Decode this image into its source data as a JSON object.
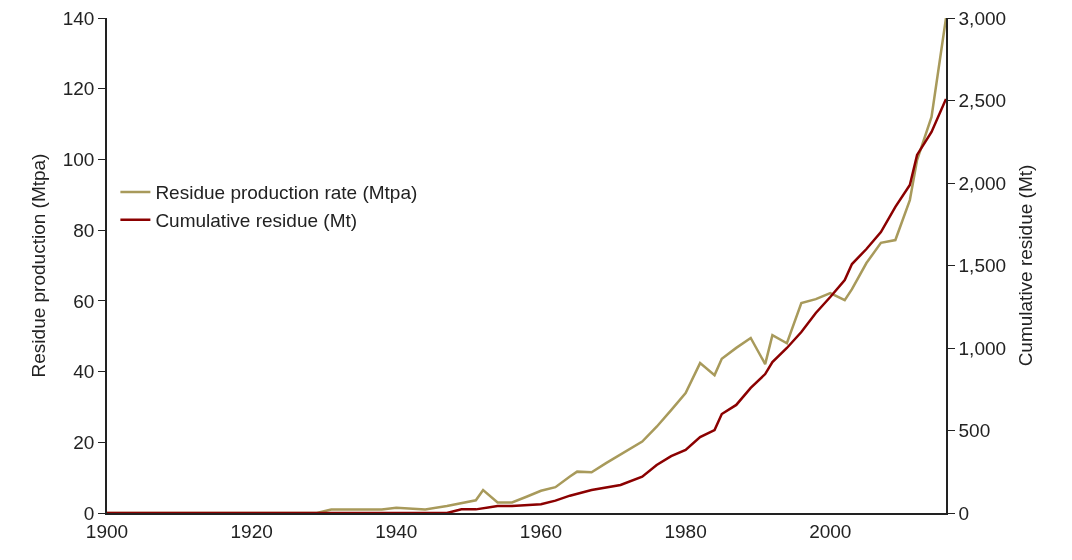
{
  "chart_data": {
    "type": "line",
    "xlabel": null,
    "ylabel": "Residue production (Mtpa)",
    "y2label": "Cumulative residue (Mt)",
    "xlim": [
      1900,
      2016
    ],
    "xticks": [
      1900,
      1920,
      1940,
      1960,
      1980,
      2000
    ],
    "ylim": [
      0,
      140
    ],
    "yticks": [
      0,
      20,
      40,
      60,
      80,
      100,
      120,
      140
    ],
    "y2lim": [
      0,
      3000
    ],
    "y2ticks": [
      {
        "value": 0,
        "label": "0"
      },
      {
        "value": 500,
        "label": "500"
      },
      {
        "value": 1000,
        "label": "1,000"
      },
      {
        "value": 1500,
        "label": "1,500"
      },
      {
        "value": 2000,
        "label": "2,000"
      },
      {
        "value": 2500,
        "label": "2,500"
      },
      {
        "value": 3000,
        "label": "3,000"
      }
    ],
    "grid": false,
    "legend": "left",
    "marker": "none",
    "line_style": "solid",
    "series": [
      {
        "name": "Residue production rate (Mtpa)",
        "color": "#a89a5b",
        "x": [
          1900,
          1929,
          1931,
          1938,
          1940,
          1944,
          1947,
          1951,
          1952,
          1954,
          1956,
          1958,
          1960,
          1962,
          1964,
          1965,
          1967,
          1969,
          1974,
          1976,
          1978,
          1980,
          1982,
          1984,
          1985,
          1987,
          1989,
          1991,
          1992,
          1994,
          1996,
          1998,
          2000,
          2002,
          2003,
          2005,
          2007,
          2009,
          2011,
          2012,
          2014,
          2016
        ],
        "values": [
          0,
          0,
          1,
          1,
          1.5,
          1,
          2,
          3.6,
          6.5,
          3,
          3,
          4.6,
          6.3,
          7.3,
          10.3,
          11.7,
          11.5,
          14.1,
          20.2,
          24.4,
          29.1,
          33.9,
          42.4,
          39,
          43.6,
          46.7,
          49.5,
          42.1,
          50.3,
          48,
          59.4,
          60.5,
          62.2,
          60.2,
          63.3,
          70.7,
          76.4,
          77.2,
          88.5,
          99.8,
          112,
          140
        ]
      },
      {
        "name": "Cumulative residue (Mt)",
        "color": "#8b0000",
        "axis": "y2",
        "x": [
          1900,
          1947,
          1949,
          1951,
          1954,
          1956,
          1960,
          1962,
          1964,
          1967,
          1971,
          1974,
          1976,
          1978,
          1980,
          1982,
          1984,
          1985,
          1987,
          1989,
          1991,
          1992,
          1994,
          1996,
          1998,
          2000,
          2002,
          2003,
          2005,
          2007,
          2009,
          2011,
          2012,
          2014,
          2016
        ],
        "values": [
          0,
          0,
          22,
          22,
          42,
          42,
          53,
          75,
          105,
          139,
          170,
          220,
          291,
          345,
          382,
          460,
          503,
          600,
          655,
          758,
          842,
          915,
          1000,
          1097,
          1212,
          1309,
          1412,
          1509,
          1600,
          1703,
          1855,
          1988,
          2170,
          2309,
          2509
        ]
      }
    ]
  }
}
